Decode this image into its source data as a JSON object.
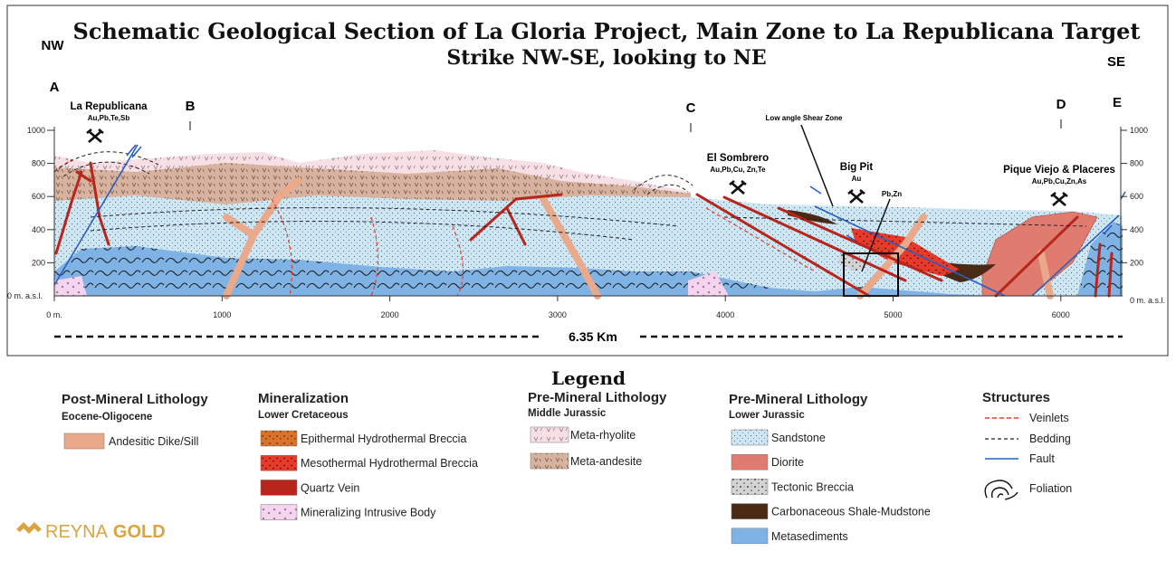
{
  "header": {
    "title": "Schematic Geological Section of La Gloria Project, Main Zone to La Republicana Target",
    "subtitle": "Strike NW-SE, looking to NE"
  },
  "section": {
    "orientation": {
      "left": "NW",
      "right": "SE"
    },
    "points": [
      "A",
      "B",
      "C",
      "D",
      "E"
    ],
    "targets": [
      {
        "name": "La Republicana",
        "elements": "Au,Pb,Te,Sb"
      },
      {
        "name": "El Sombrero",
        "elements": "Au,Pb,Cu, Zn,Te"
      },
      {
        "name": "Big Pit",
        "elements": "Au"
      },
      {
        "name": "Pique Viejo & Placeres",
        "elements": "Au,Pb,Cu,Zn,As"
      }
    ],
    "annotations": {
      "shear_zone": "Low angle Shear Zone",
      "pb_zn": "Pb,Zn"
    },
    "elevation_ticks": [
      "1000",
      "800",
      "600",
      "400",
      "200"
    ],
    "base_label": "0 m. a.s.l.",
    "distance_ticks": [
      "0 m.",
      "1000",
      "2000",
      "3000",
      "4000",
      "5000",
      "6000"
    ],
    "length": "6.35 Km"
  },
  "legend": {
    "title": "Legend",
    "groups": [
      {
        "title": "Post-Mineral Lithology",
        "subtitle": "Eocene-Oligocene",
        "items": [
          "Andesitic Dike/Sill"
        ]
      },
      {
        "title": "Mineralization",
        "subtitle": "Lower Cretaceous",
        "items": [
          "Epithermal Hydrothermal Breccia",
          "Mesothermal Hydrothermal Breccia",
          "Quartz Vein",
          "Mineralizing Intrusive Body"
        ]
      },
      {
        "title": "Pre-Mineral Lithology",
        "subtitle": "Middle Jurassic",
        "items": [
          "Meta-rhyolite",
          "Meta-andesite"
        ]
      },
      {
        "title": "Pre-Mineral Lithology",
        "subtitle": "Lower Jurassic",
        "items": [
          "Sandstone",
          "Diorite",
          "Tectonic Breccia",
          "Carbonaceous Shale-Mudstone",
          "Metasediments"
        ]
      }
    ],
    "structures": {
      "title": "Structures",
      "items": [
        "Veinlets",
        "Bedding",
        "Fault",
        "Foliation"
      ]
    }
  },
  "brand": [
    "REYNA",
    "GOLD"
  ]
}
